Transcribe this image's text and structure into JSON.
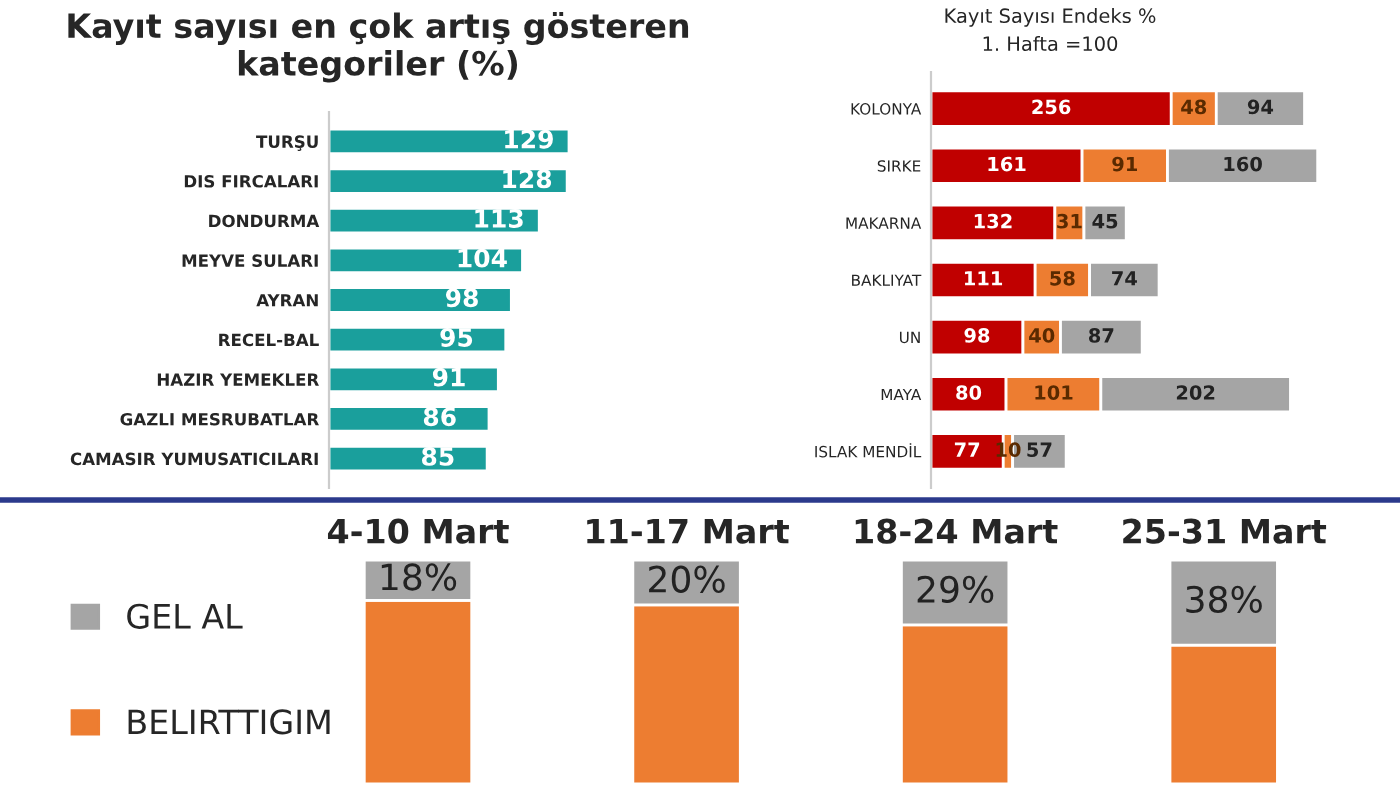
{
  "chart_data": [
    {
      "type": "bar",
      "orientation": "horizontal",
      "title": "Kayıt sayısı en çok artış gösteren kategoriler (%)",
      "categories": [
        "TURŞU",
        "DIS FIRCALARI",
        "DONDURMA",
        "MEYVE SULARI",
        "AYRAN",
        "RECEL-BAL",
        "HAZIR YEMEKLER",
        "GAZLI MESRUBATLAR",
        "CAMASIR YUMUSATICILARI"
      ],
      "series": [
        {
          "color": "#1a9f9c",
          "values": [
            129,
            128,
            113,
            104,
            98,
            95,
            91,
            86,
            85
          ]
        }
      ],
      "data_labels": true,
      "tick_labels": "y",
      "grid": false,
      "legend": false
    },
    {
      "type": "bar",
      "orientation": "horizontal",
      "stacked": true,
      "title": "Kayıt Sayısı Endeks %",
      "subtitle": "1. Hafta =100",
      "categories": [
        "KOLONYA",
        "SIRKE",
        "MAKARNA",
        "BAKLIYAT",
        "UN",
        "MAYA",
        "ISLAK MENDİL"
      ],
      "series": [
        {
          "color": "#c00000",
          "values": [
            256,
            161,
            132,
            111,
            98,
            80,
            77
          ]
        },
        {
          "color": "#ed7d31",
          "values": [
            48,
            91,
            31,
            58,
            40,
            101,
            10
          ]
        },
        {
          "color": "#a5a5a5",
          "values": [
            94,
            160,
            45,
            74,
            87,
            202,
            57
          ]
        }
      ],
      "data_labels": true,
      "tick_labels": "y",
      "grid": false,
      "legend": false
    },
    {
      "type": "bar",
      "stacked": true,
      "categories": [
        "4-10 Mart",
        "11-17 Mart",
        "18-24 Mart",
        "25-31 Mart"
      ],
      "series": [
        {
          "name": "BELIRTTIGIM",
          "color": "#ed7d31",
          "values": [
            82,
            80,
            71,
            62
          ]
        },
        {
          "name": "GEL AL",
          "color": "#a5a5a5",
          "values": [
            18,
            20,
            29,
            38
          ],
          "value_labels": [
            "18%",
            "20%",
            "29%",
            "38%"
          ]
        }
      ],
      "ylim": [
        0,
        100
      ],
      "tick_labels": "x",
      "grid": false,
      "legend": "left"
    }
  ]
}
